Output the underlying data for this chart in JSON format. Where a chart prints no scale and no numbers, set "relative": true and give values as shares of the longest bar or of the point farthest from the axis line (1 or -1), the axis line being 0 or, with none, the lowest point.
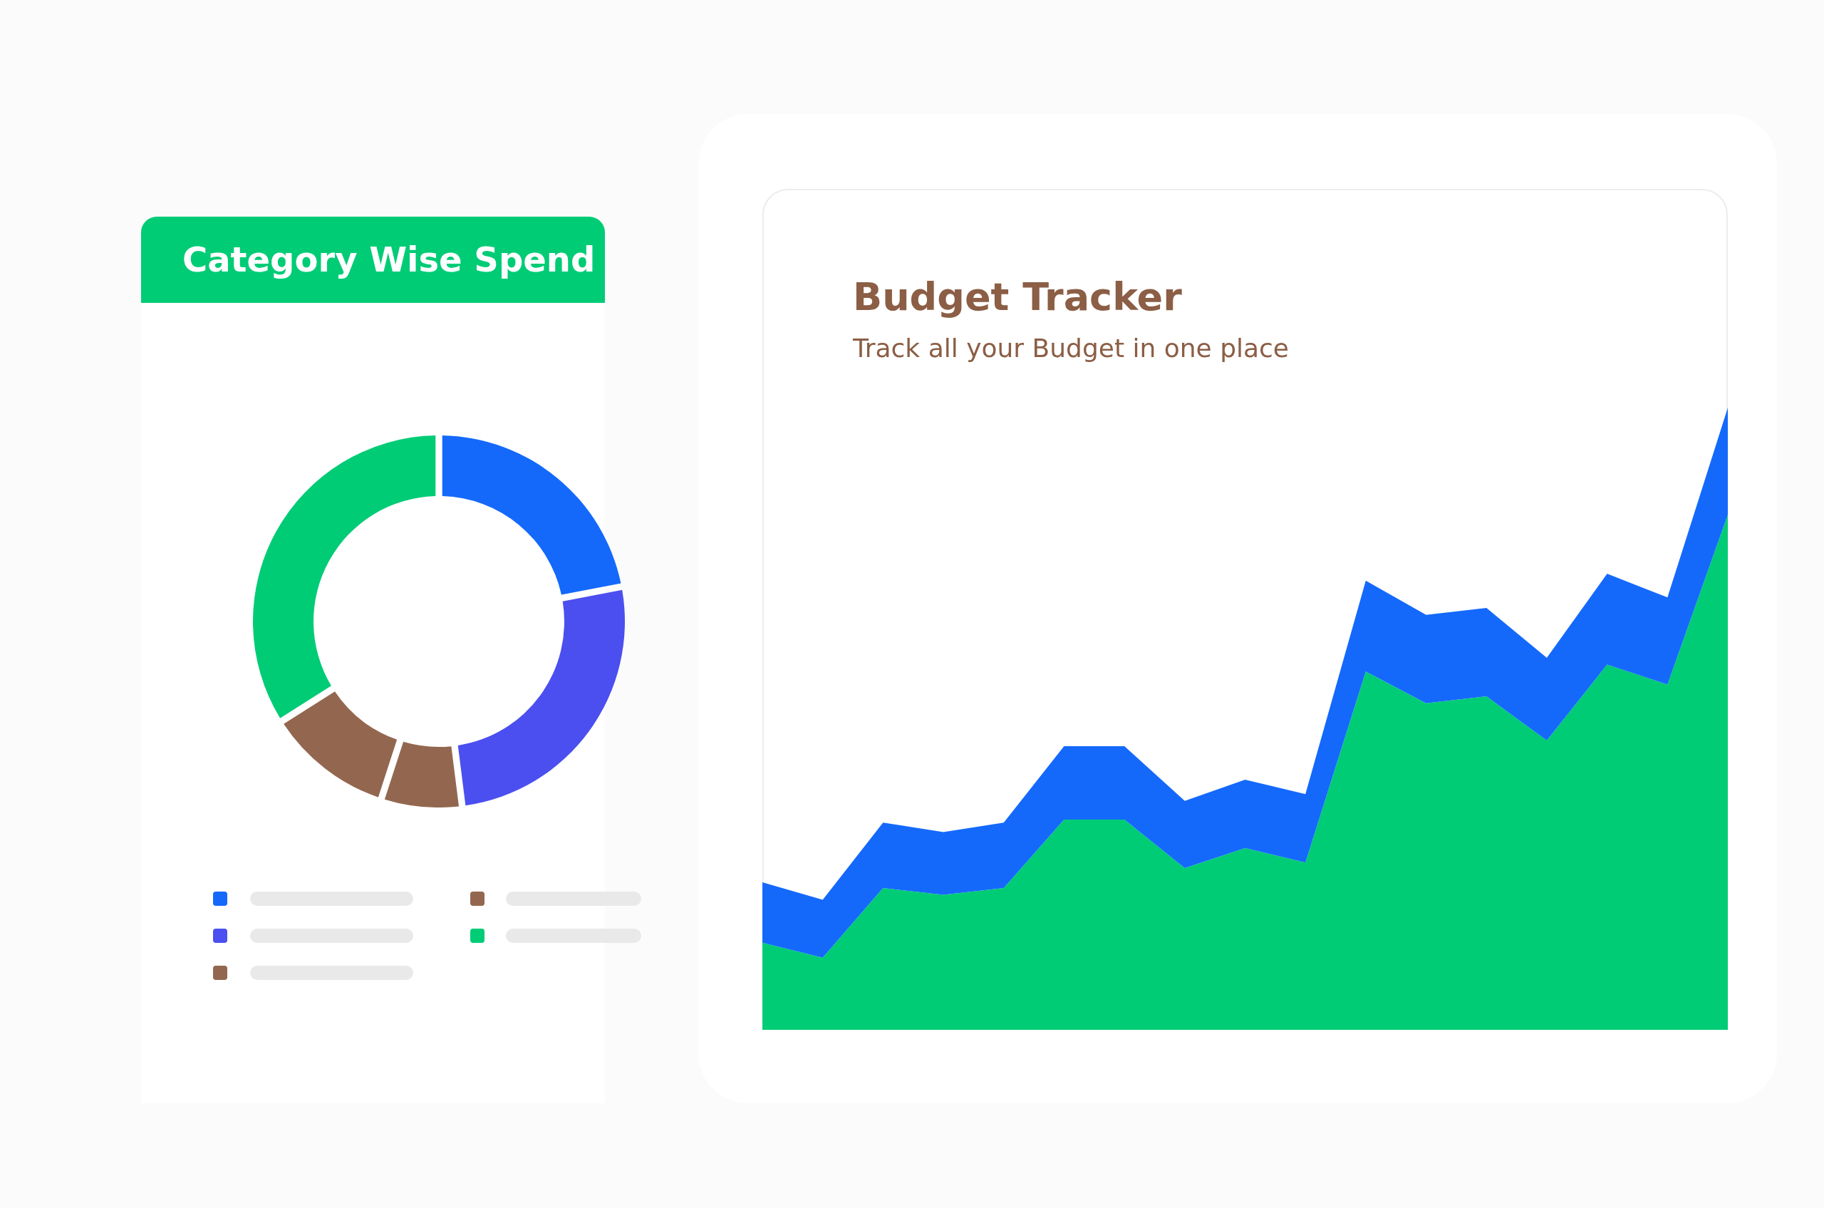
{
  "chart_data": [
    {
      "type": "donut",
      "title": "Category Wise Spend",
      "categories": [
        null,
        null,
        null,
        null,
        null
      ],
      "values": [
        22,
        26,
        7,
        11,
        34
      ],
      "colors": [
        "#1469fb",
        "#4b4fef",
        "#93674f",
        "#93674f",
        "#00cc76"
      ]
    },
    {
      "type": "area",
      "title": "Budget Tracker",
      "subtitle": "Track all your Budget in one place",
      "relative": true,
      "stacked": true,
      "grid": false,
      "categories": [
        null,
        null,
        null,
        null,
        null,
        null,
        null,
        null,
        null,
        null,
        null,
        null,
        null,
        null,
        null,
        null,
        null
      ],
      "series": [
        {
          "color": "#00cc76",
          "values": [
            0.14,
            0.116,
            0.228,
            0.217,
            0.228,
            0.338,
            0.338,
            0.26,
            0.292,
            0.269,
            0.576,
            0.525,
            0.536,
            0.465,
            0.587,
            0.555,
            0.828
          ]
        },
        {
          "color": "#1469fb",
          "values": [
            0.097,
            0.093,
            0.105,
            0.101,
            0.105,
            0.118,
            0.118,
            0.108,
            0.11,
            0.11,
            0.146,
            0.142,
            0.142,
            0.133,
            0.146,
            0.14,
            0.172
          ]
        }
      ]
    }
  ]
}
